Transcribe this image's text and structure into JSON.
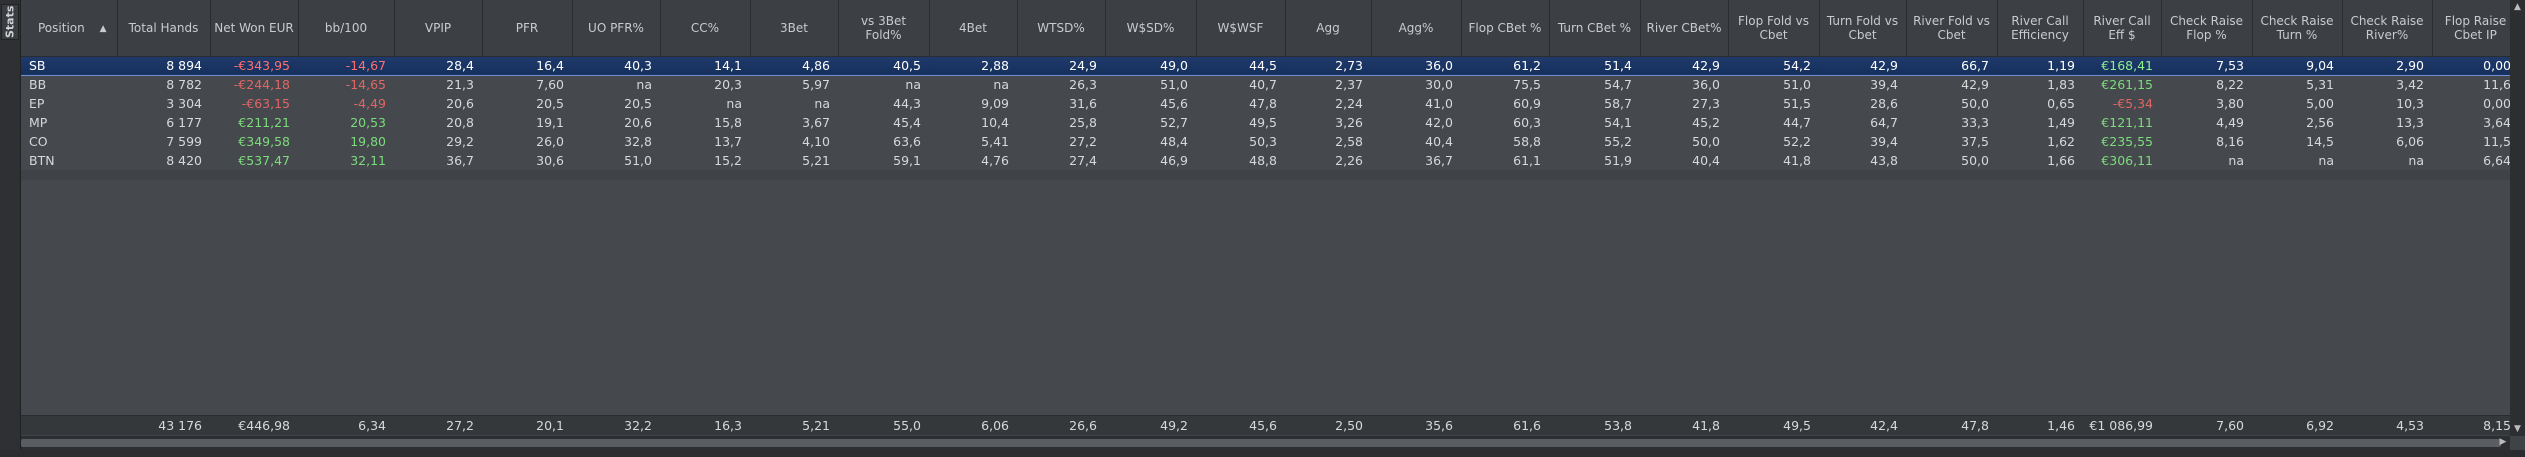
{
  "sidebar": {
    "label": "Stats"
  },
  "columns": [
    {
      "key": "position",
      "label": "Position"
    },
    {
      "key": "total_hands",
      "label": "Total Hands"
    },
    {
      "key": "net_won",
      "label": "Net Won EUR"
    },
    {
      "key": "bb100",
      "label": "bb/100"
    },
    {
      "key": "vpip",
      "label": "VPIP"
    },
    {
      "key": "pfr",
      "label": "PFR"
    },
    {
      "key": "uo_pfr",
      "label": "UO PFR%"
    },
    {
      "key": "cc",
      "label": "CC%"
    },
    {
      "key": "three_bet",
      "label": "3Bet"
    },
    {
      "key": "vs3bet_fold",
      "label": "vs 3Bet Fold%"
    },
    {
      "key": "four_bet",
      "label": "4Bet"
    },
    {
      "key": "wtsd",
      "label": "WTSD%"
    },
    {
      "key": "wsd",
      "label": "W$SD%"
    },
    {
      "key": "wswsf",
      "label": "W$WSF"
    },
    {
      "key": "agg",
      "label": "Agg"
    },
    {
      "key": "agg_pct",
      "label": "Agg%"
    },
    {
      "key": "flop_cbet",
      "label": "Flop CBet %"
    },
    {
      "key": "turn_cbet",
      "label": "Turn CBet %"
    },
    {
      "key": "river_cbet",
      "label": "River CBet%"
    },
    {
      "key": "flop_fold_cbet",
      "label": "Flop Fold vs Cbet"
    },
    {
      "key": "turn_fold_cbet",
      "label": "Turn Fold vs Cbet"
    },
    {
      "key": "river_fold_cbet",
      "label": "River Fold vs Cbet"
    },
    {
      "key": "river_call_eff",
      "label": "River Call Efficiency"
    },
    {
      "key": "river_call_eff_usd",
      "label": "River Call Eff $"
    },
    {
      "key": "check_raise_flop",
      "label": "Check Raise Flop %"
    },
    {
      "key": "check_raise_turn",
      "label": "Check Raise Turn %"
    },
    {
      "key": "check_raise_river",
      "label": "Check Raise River%"
    },
    {
      "key": "flop_raise_cbet_ip",
      "label": "Flop Raise Cbet IP"
    }
  ],
  "rows": [
    {
      "selected": true,
      "cells": [
        "SB",
        "8 894",
        "-€343,95",
        "-14,67",
        "28,4",
        "16,4",
        "40,3",
        "14,1",
        "4,86",
        "40,5",
        "2,88",
        "24,9",
        "49,0",
        "44,5",
        "2,73",
        "36,0",
        "61,2",
        "51,4",
        "42,9",
        "54,2",
        "42,9",
        "66,7",
        "1,19",
        "€168,41",
        "7,53",
        "9,04",
        "2,90",
        "0,00"
      ]
    },
    {
      "selected": false,
      "cells": [
        "BB",
        "8 782",
        "-€244,18",
        "-14,65",
        "21,3",
        "7,60",
        "na",
        "20,3",
        "5,97",
        "na",
        "na",
        "26,3",
        "51,0",
        "40,7",
        "2,37",
        "30,0",
        "75,5",
        "54,7",
        "36,0",
        "51,0",
        "39,4",
        "42,9",
        "1,83",
        "€261,15",
        "8,22",
        "5,31",
        "3,42",
        "11,6"
      ]
    },
    {
      "selected": false,
      "cells": [
        "EP",
        "3 304",
        "-€63,15",
        "-4,49",
        "20,6",
        "20,5",
        "20,5",
        "na",
        "na",
        "44,3",
        "9,09",
        "31,6",
        "45,6",
        "47,8",
        "2,24",
        "41,0",
        "60,9",
        "58,7",
        "27,3",
        "51,5",
        "28,6",
        "50,0",
        "0,65",
        "-€5,34",
        "3,80",
        "5,00",
        "10,3",
        "0,00"
      ]
    },
    {
      "selected": false,
      "cells": [
        "MP",
        "6 177",
        "€211,21",
        "20,53",
        "20,8",
        "19,1",
        "20,6",
        "15,8",
        "3,67",
        "45,4",
        "10,4",
        "25,8",
        "52,7",
        "49,5",
        "3,26",
        "42,0",
        "60,3",
        "54,1",
        "45,2",
        "44,7",
        "64,7",
        "33,3",
        "1,49",
        "€121,11",
        "4,49",
        "2,56",
        "13,3",
        "3,64"
      ]
    },
    {
      "selected": false,
      "cells": [
        "CO",
        "7 599",
        "€349,58",
        "19,80",
        "29,2",
        "26,0",
        "32,8",
        "13,7",
        "4,10",
        "63,6",
        "5,41",
        "27,2",
        "48,4",
        "50,3",
        "2,58",
        "40,4",
        "58,8",
        "55,2",
        "50,0",
        "52,2",
        "39,4",
        "37,5",
        "1,62",
        "€235,55",
        "8,16",
        "14,5",
        "6,06",
        "11,5"
      ]
    },
    {
      "selected": false,
      "cells": [
        "BTN",
        "8 420",
        "€537,47",
        "32,11",
        "36,7",
        "30,6",
        "51,0",
        "15,2",
        "5,21",
        "59,1",
        "4,76",
        "27,4",
        "46,9",
        "48,8",
        "2,26",
        "36,7",
        "61,1",
        "51,9",
        "40,4",
        "41,8",
        "43,8",
        "50,0",
        "1,66",
        "€306,11",
        "na",
        "na",
        "na",
        "6,64"
      ]
    }
  ],
  "totals": [
    "",
    "43 176",
    "€446,98",
    "6,34",
    "27,2",
    "20,1",
    "32,2",
    "16,3",
    "5,21",
    "55,0",
    "6,06",
    "26,6",
    "49,2",
    "45,6",
    "2,50",
    "35,6",
    "61,6",
    "53,8",
    "41,8",
    "49,5",
    "42,4",
    "47,8",
    "1,46",
    "€1 086,99",
    "7,60",
    "6,92",
    "4,53",
    "8,15"
  ],
  "colors": {
    "negative": "#e06666",
    "positive": "#7cdc7c",
    "selected_row": "#1f3a6b",
    "background": "#45484c"
  }
}
